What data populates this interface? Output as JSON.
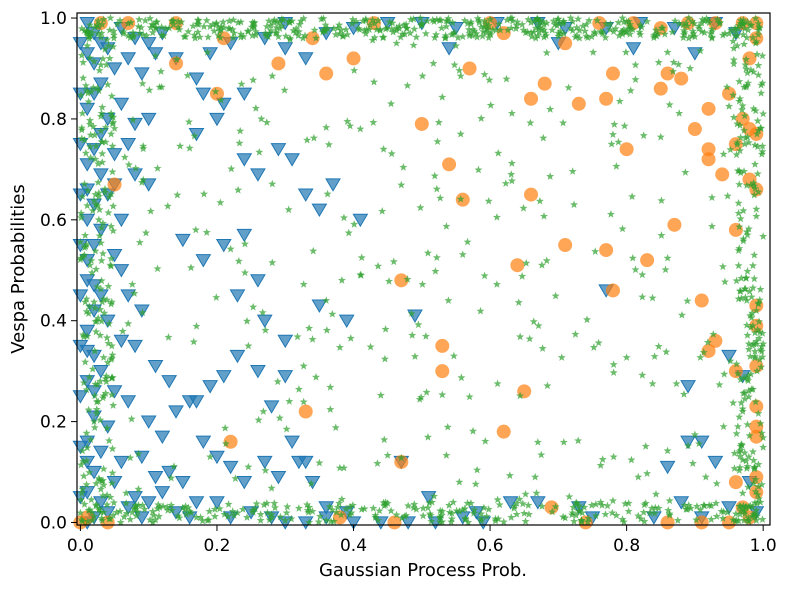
{
  "chart_data": {
    "type": "scatter",
    "title": "",
    "xlabel": "Gaussian Process Prob.",
    "ylabel": "Vespa Probabilities",
    "xlim": [
      -0.005,
      1.01
    ],
    "ylim": [
      -0.005,
      1.01
    ],
    "x_ticks": [
      "0.0",
      "0.2",
      "0.4",
      "0.6",
      "0.8",
      "1.0"
    ],
    "y_ticks": [
      "0.0",
      "0.2",
      "0.4",
      "0.6",
      "0.8",
      "1.0"
    ],
    "grid": false,
    "legend": "none",
    "series": [
      {
        "marker": "triangle-down",
        "color": "#1f77b4",
        "points": [
          [
            0.01,
            0.99
          ],
          [
            0.02,
            0.97
          ],
          [
            0.03,
            0.95
          ],
          [
            0.01,
            0.93
          ],
          [
            0.02,
            0.91
          ],
          [
            0.04,
            0.94
          ],
          [
            0.06,
            0.98
          ],
          [
            0.08,
            0.96
          ],
          [
            0.1,
            0.95
          ],
          [
            0.12,
            0.97
          ],
          [
            0.05,
            0.9
          ],
          [
            0.07,
            0.92
          ],
          [
            0.09,
            0.89
          ],
          [
            0.11,
            0.93
          ],
          [
            0.03,
            0.87
          ],
          [
            0.02,
            0.85
          ],
          [
            0.01,
            0.82
          ],
          [
            0.04,
            0.8
          ],
          [
            0.06,
            0.83
          ],
          [
            0.08,
            0.79
          ],
          [
            0.1,
            0.8
          ],
          [
            0.03,
            0.77
          ],
          [
            0.02,
            0.74
          ],
          [
            0.01,
            0.71
          ],
          [
            0.05,
            0.73
          ],
          [
            0.07,
            0.75
          ],
          [
            0.03,
            0.69
          ],
          [
            0.01,
            0.66
          ],
          [
            0.02,
            0.63
          ],
          [
            0.04,
            0.65
          ],
          [
            0.01,
            0.6
          ],
          [
            0.03,
            0.58
          ],
          [
            0.02,
            0.55
          ],
          [
            0.05,
            0.53
          ],
          [
            0.06,
            0.5
          ],
          [
            0.01,
            0.48
          ],
          [
            0.03,
            0.45
          ],
          [
            0.02,
            0.42
          ],
          [
            0.04,
            0.4
          ],
          [
            0.01,
            0.38
          ],
          [
            0.06,
            0.36
          ],
          [
            0.02,
            0.33
          ],
          [
            0.03,
            0.3
          ],
          [
            0.01,
            0.28
          ],
          [
            0.05,
            0.26
          ],
          [
            0.07,
            0.24
          ],
          [
            0.02,
            0.21
          ],
          [
            0.04,
            0.19
          ],
          [
            0.01,
            0.16
          ],
          [
            0.03,
            0.14
          ],
          [
            0.06,
            0.12
          ],
          [
            0.02,
            0.1
          ],
          [
            0.05,
            0.08
          ],
          [
            0.01,
            0.06
          ],
          [
            0.03,
            0.04
          ],
          [
            0.07,
            0.03
          ],
          [
            0.04,
            0.02
          ],
          [
            0.02,
            0.01
          ],
          [
            0.01,
            0.0
          ],
          [
            0.09,
            0.01
          ],
          [
            0.08,
            0.05
          ],
          [
            0.1,
            0.04
          ],
          [
            0.12,
            0.06
          ],
          [
            0.14,
            0.02
          ],
          [
            0.16,
            0.01
          ],
          [
            0.11,
            0.09
          ],
          [
            0.09,
            0.13
          ],
          [
            0.13,
            0.1
          ],
          [
            0.15,
            0.08
          ],
          [
            0.17,
            0.04
          ],
          [
            0.2,
            0.04
          ],
          [
            0.22,
            0.01
          ],
          [
            0.25,
            0.02
          ],
          [
            0.28,
            0.01
          ],
          [
            0.3,
            0.0
          ],
          [
            0.33,
            0.0
          ],
          [
            0.36,
            0.01
          ],
          [
            0.4,
            0.0
          ],
          [
            0.44,
            0.0
          ],
          [
            0.48,
            0.0
          ],
          [
            0.52,
            0.0
          ],
          [
            0.56,
            0.01
          ],
          [
            0.59,
            0.0
          ],
          [
            0.1,
            0.2
          ],
          [
            0.12,
            0.17
          ],
          [
            0.14,
            0.22
          ],
          [
            0.17,
            0.24
          ],
          [
            0.19,
            0.27
          ],
          [
            0.23,
            0.33
          ],
          [
            0.21,
            0.29
          ],
          [
            0.18,
            0.16
          ],
          [
            0.2,
            0.13
          ],
          [
            0.22,
            0.11
          ],
          [
            0.24,
            0.08
          ],
          [
            0.27,
            0.12
          ],
          [
            0.29,
            0.09
          ],
          [
            0.32,
            0.12
          ],
          [
            0.34,
            0.08
          ],
          [
            0.36,
            0.03
          ],
          [
            0.39,
            0.02
          ],
          [
            0.05,
            0.67
          ],
          [
            0.08,
            0.69
          ],
          [
            0.06,
            0.6
          ],
          [
            0.07,
            0.45
          ],
          [
            0.09,
            0.42
          ],
          [
            0.1,
            0.67
          ],
          [
            0.08,
            0.35
          ],
          [
            0.11,
            0.31
          ],
          [
            0.13,
            0.28
          ],
          [
            0.16,
            0.24
          ],
          [
            0.15,
            0.56
          ],
          [
            0.18,
            0.52
          ],
          [
            0.21,
            0.55
          ],
          [
            0.24,
            0.57
          ],
          [
            0.26,
            0.48
          ],
          [
            0.23,
            0.45
          ],
          [
            0.27,
            0.4
          ],
          [
            0.3,
            0.36
          ],
          [
            0.26,
            0.3
          ],
          [
            0.28,
            0.23
          ],
          [
            0.31,
            0.16
          ],
          [
            0.33,
            0.12
          ],
          [
            0.3,
            0.29
          ],
          [
            0.33,
            0.65
          ],
          [
            0.35,
            0.62
          ],
          [
            0.37,
            0.67
          ],
          [
            0.41,
            0.6
          ],
          [
            0.35,
            0.43
          ],
          [
            0.39,
            0.4
          ],
          [
            0.49,
            0.41
          ],
          [
            0.18,
            0.85
          ],
          [
            0.21,
            0.83
          ],
          [
            0.24,
            0.85
          ],
          [
            0.17,
            0.77
          ],
          [
            0.2,
            0.8
          ],
          [
            0.24,
            0.72
          ],
          [
            0.26,
            0.69
          ],
          [
            0.29,
            0.74
          ],
          [
            0.31,
            0.72
          ],
          [
            0.17,
            0.88
          ],
          [
            0.14,
            0.92
          ],
          [
            0.19,
            0.93
          ],
          [
            0.22,
            0.95
          ],
          [
            0.27,
            0.96
          ],
          [
            0.3,
            0.94
          ],
          [
            0.33,
            0.92
          ],
          [
            0.36,
            0.97
          ],
          [
            0.3,
            0.99
          ],
          [
            0.4,
            0.98
          ],
          [
            0.45,
            0.99
          ],
          [
            0.5,
            0.99
          ],
          [
            0.55,
            0.98
          ],
          [
            0.61,
            0.99
          ],
          [
            0.67,
            0.99
          ],
          [
            0.71,
            0.98
          ],
          [
            0.77,
            0.98
          ],
          [
            0.82,
            0.99
          ],
          [
            0.87,
            0.98
          ],
          [
            0.93,
            0.99
          ],
          [
            0.96,
            0.97
          ],
          [
            0.54,
            0.94
          ],
          [
            0.7,
            0.95
          ],
          [
            0.81,
            0.94
          ],
          [
            0.9,
            0.93
          ],
          [
            0.47,
            0.12
          ],
          [
            0.51,
            0.05
          ],
          [
            0.58,
            0.02
          ],
          [
            0.63,
            0.04
          ],
          [
            0.67,
            0.04
          ],
          [
            0.73,
            0.03
          ],
          [
            0.75,
            0.01
          ],
          [
            0.77,
            0.46
          ],
          [
            0.89,
            0.27
          ],
          [
            0.89,
            0.16
          ],
          [
            0.91,
            0.16
          ],
          [
            0.86,
            0.11
          ],
          [
            0.88,
            0.04
          ],
          [
            0.93,
            0.12
          ],
          [
            0.95,
            0.33
          ],
          [
            0.97,
            0.29
          ],
          [
            0.99,
            0.02
          ],
          [
            0.98,
            0.08
          ],
          [
            0.95,
            0.03
          ],
          [
            0.84,
            0.01
          ],
          [
            0.91,
            0.01
          ],
          [
            0.0,
            0.95
          ],
          [
            0.0,
            0.85
          ],
          [
            0.0,
            0.75
          ],
          [
            0.0,
            0.65
          ],
          [
            0.0,
            0.55
          ],
          [
            0.0,
            0.45
          ],
          [
            0.0,
            0.35
          ],
          [
            0.0,
            0.25
          ],
          [
            0.0,
            0.15
          ],
          [
            0.0,
            0.05
          ],
          [
            0.01,
            0.52
          ],
          [
            0.02,
            0.47
          ],
          [
            0.01,
            0.34
          ],
          [
            0.02,
            0.26
          ],
          [
            0.01,
            0.12
          ]
        ]
      },
      {
        "marker": "circle",
        "color": "#ff7f0e",
        "points": [
          [
            0.03,
            0.99
          ],
          [
            0.07,
            0.99
          ],
          [
            0.14,
            0.99
          ],
          [
            0.21,
            0.96
          ],
          [
            0.14,
            0.91
          ],
          [
            0.2,
            0.85
          ],
          [
            0.29,
            0.91
          ],
          [
            0.34,
            0.96
          ],
          [
            0.36,
            0.89
          ],
          [
            0.4,
            0.92
          ],
          [
            0.43,
            0.99
          ],
          [
            0.5,
            0.79
          ],
          [
            0.54,
            0.71
          ],
          [
            0.56,
            0.64
          ],
          [
            0.57,
            0.9
          ],
          [
            0.62,
            0.97
          ],
          [
            0.6,
            0.99
          ],
          [
            0.66,
            0.84
          ],
          [
            0.68,
            0.87
          ],
          [
            0.66,
            0.65
          ],
          [
            0.71,
            0.95
          ],
          [
            0.73,
            0.83
          ],
          [
            0.77,
            0.84
          ],
          [
            0.78,
            0.89
          ],
          [
            0.8,
            0.74
          ],
          [
            0.85,
            0.86
          ],
          [
            0.86,
            0.89
          ],
          [
            0.88,
            0.88
          ],
          [
            0.92,
            0.82
          ],
          [
            0.9,
            0.78
          ],
          [
            0.92,
            0.72
          ],
          [
            0.92,
            0.74
          ],
          [
            0.94,
            0.69
          ],
          [
            0.96,
            0.75
          ],
          [
            0.97,
            0.8
          ],
          [
            0.98,
            0.78
          ],
          [
            0.99,
            0.77
          ],
          [
            0.95,
            0.85
          ],
          [
            0.98,
            0.92
          ],
          [
            0.99,
            0.96
          ],
          [
            0.97,
            0.99
          ],
          [
            0.93,
            0.99
          ],
          [
            0.89,
            0.99
          ],
          [
            0.85,
            0.98
          ],
          [
            0.81,
            0.99
          ],
          [
            0.76,
            0.99
          ],
          [
            0.98,
            0.68
          ],
          [
            0.99,
            0.66
          ],
          [
            0.96,
            0.58
          ],
          [
            0.91,
            0.44
          ],
          [
            0.93,
            0.36
          ],
          [
            0.92,
            0.34
          ],
          [
            0.96,
            0.3
          ],
          [
            0.99,
            0.43
          ],
          [
            0.99,
            0.39
          ],
          [
            0.99,
            0.31
          ],
          [
            0.99,
            0.23
          ],
          [
            0.99,
            0.19
          ],
          [
            0.99,
            0.17
          ],
          [
            0.99,
            0.09
          ],
          [
            0.99,
            0.06
          ],
          [
            0.96,
            0.08
          ],
          [
            0.97,
            0.03
          ],
          [
            0.98,
            0.01
          ],
          [
            0.95,
            0.0
          ],
          [
            0.91,
            0.0
          ],
          [
            0.86,
            0.0
          ],
          [
            0.74,
            0.0
          ],
          [
            0.69,
            0.03
          ],
          [
            0.62,
            0.18
          ],
          [
            0.65,
            0.26
          ],
          [
            0.64,
            0.51
          ],
          [
            0.71,
            0.55
          ],
          [
            0.77,
            0.54
          ],
          [
            0.83,
            0.52
          ],
          [
            0.87,
            0.59
          ],
          [
            0.78,
            0.46
          ],
          [
            0.47,
            0.48
          ],
          [
            0.53,
            0.35
          ],
          [
            0.53,
            0.3
          ],
          [
            0.47,
            0.12
          ],
          [
            0.33,
            0.22
          ],
          [
            0.22,
            0.16
          ],
          [
            0.38,
            0.01
          ],
          [
            0.46,
            0.0
          ],
          [
            0.04,
            0.0
          ],
          [
            0.05,
            0.67
          ],
          [
            0.0,
            0.0
          ],
          [
            0.01,
            0.01
          ],
          [
            0.99,
            0.99
          ]
        ]
      },
      {
        "marker": "star",
        "color": "#2ca02c",
        "points": []
      }
    ]
  }
}
